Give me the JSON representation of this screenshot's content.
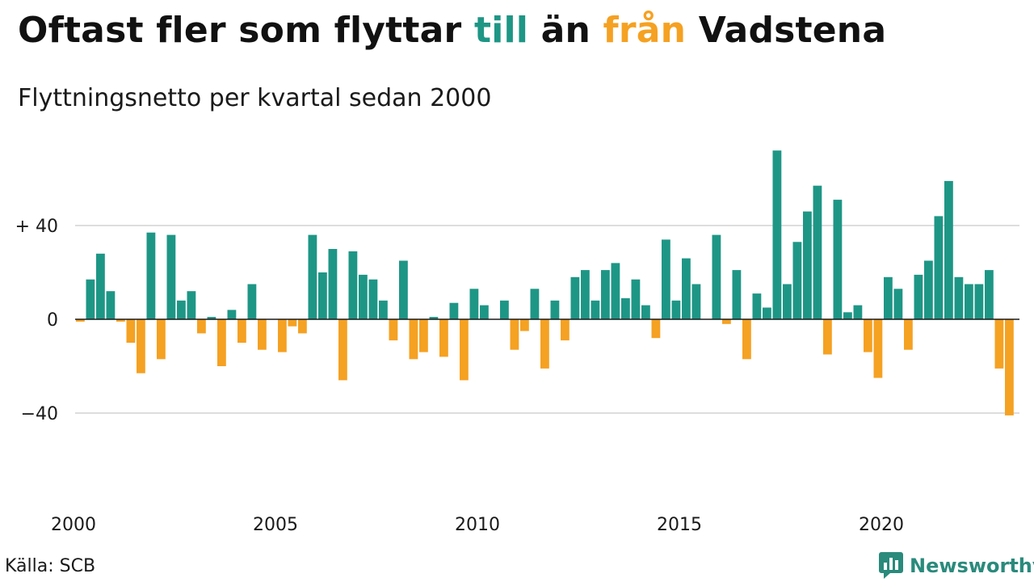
{
  "header": {
    "title_parts": [
      "Oftast fler som flyttar ",
      "till",
      " än ",
      "från",
      " Vadstena"
    ],
    "subtitle": "Flyttningsnetto per kvartal sedan 2000"
  },
  "footer": {
    "source": "Källa: SCB",
    "brand": "Newsworthy"
  },
  "colors": {
    "positive": "#1e9686",
    "negative": "#f5a122",
    "grid": "#dddddd",
    "brand": "#2a8a7c"
  },
  "icons": {
    "brand_logo": "newsworthy-logo-icon"
  },
  "chart_data": {
    "type": "bar",
    "title": "Oftast fler som flyttar till än från Vadstena",
    "subtitle": "Flyttningsnetto per kvartal sedan 2000",
    "xlabel": "",
    "ylabel": "",
    "x_start_year": 2000,
    "periods_per_year": 4,
    "x_ticks": [
      2000,
      2005,
      2010,
      2015,
      2020
    ],
    "y_ticks": [
      {
        "value": 40,
        "label": "+ 40"
      },
      {
        "value": 0,
        "label": "0"
      },
      {
        "value": -40,
        "label": "−40"
      }
    ],
    "ylim": [
      -80,
      80
    ],
    "grid": true,
    "values": [
      -1,
      17,
      28,
      12,
      -1,
      -10,
      -23,
      37,
      -17,
      36,
      8,
      12,
      -6,
      1,
      -20,
      4,
      -10,
      15,
      -13,
      0,
      -14,
      -3,
      -6,
      36,
      20,
      30,
      -26,
      29,
      19,
      17,
      8,
      -9,
      25,
      -17,
      -14,
      1,
      -16,
      7,
      -26,
      13,
      6,
      0,
      8,
      -13,
      -5,
      13,
      -21,
      8,
      -9,
      18,
      21,
      8,
      21,
      24,
      9,
      17,
      6,
      -8,
      34,
      8,
      26,
      15,
      0,
      36,
      -2,
      21,
      -17,
      11,
      5,
      72,
      15,
      33,
      46,
      57,
      -15,
      51,
      3,
      6,
      -14,
      -25,
      18,
      13,
      -13,
      19,
      25,
      44,
      59,
      18,
      15,
      15,
      21,
      -21,
      -41
    ]
  }
}
